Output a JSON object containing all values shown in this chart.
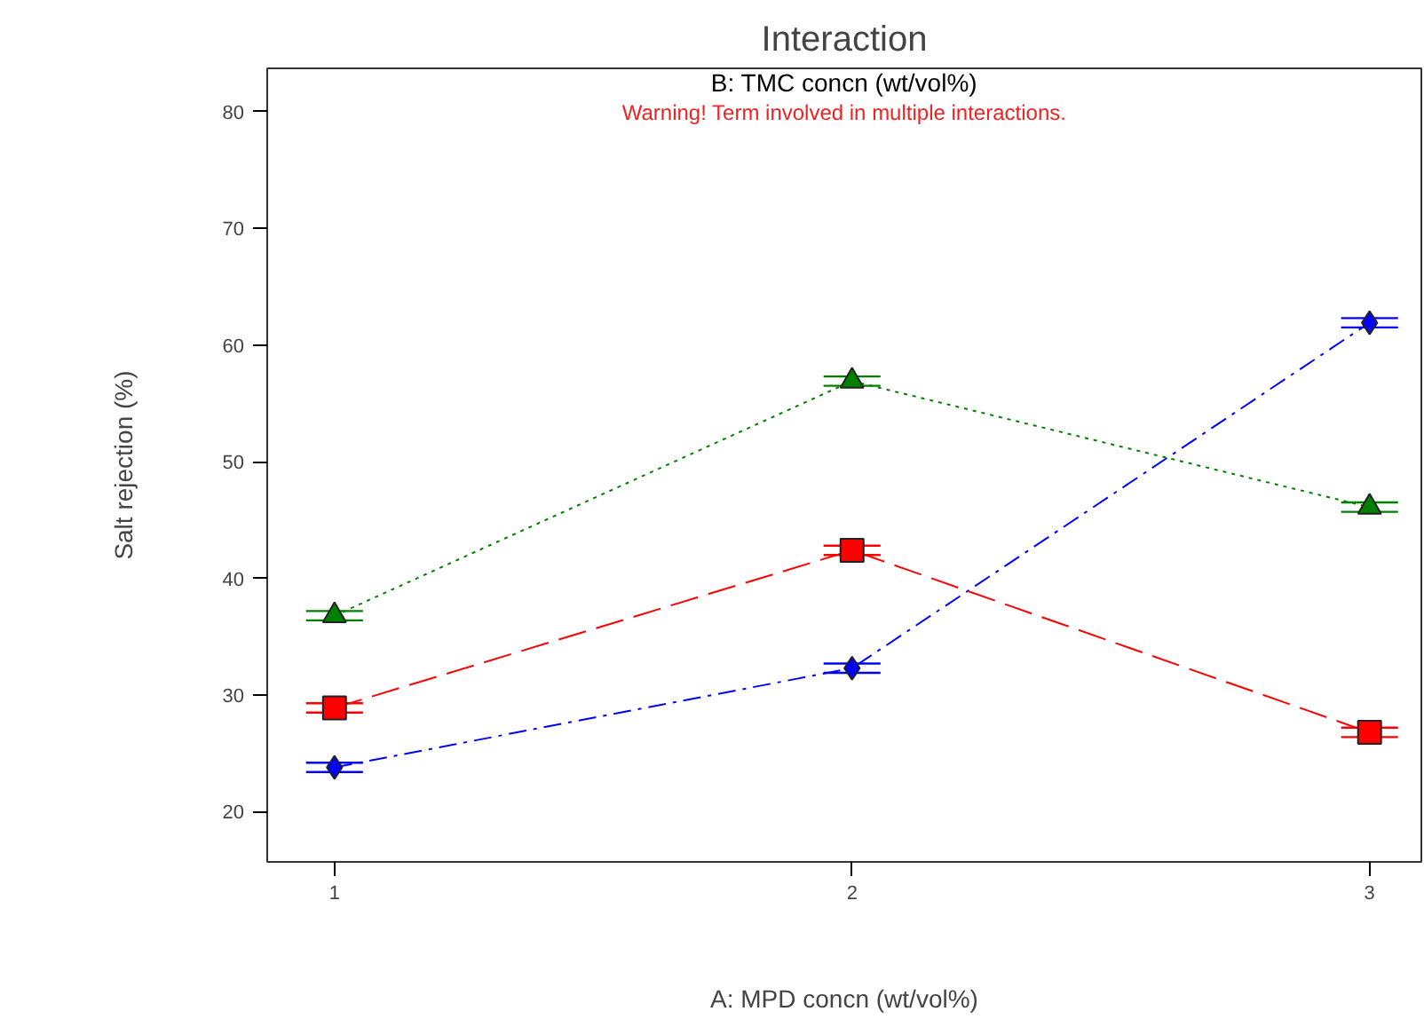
{
  "chart_data": {
    "type": "line",
    "title": "Interaction",
    "xlabel": "A: MPD concn (wt/vol%)",
    "ylabel": "Salt rejection (%)",
    "annotations": [
      "B: TMC concn (wt/vol%)",
      "Warning! Term involved in multiple interactions."
    ],
    "x": [
      1,
      2,
      3
    ],
    "xlim": [
      0.87,
      3.1
    ],
    "xticks": [
      1,
      2,
      3
    ],
    "ylim": [
      15.7,
      83.7
    ],
    "yticks": [
      20,
      30,
      40,
      50,
      60,
      70,
      80
    ],
    "grid": false,
    "series": [
      {
        "color": "#0000ff",
        "values": [
          23.8,
          32.3,
          61.9
        ],
        "errors": [
          0.4,
          0.4,
          0.4
        ],
        "marker": "diamond",
        "line_style": "dashdot"
      },
      {
        "color": "#ff0000",
        "values": [
          28.9,
          42.4,
          26.8
        ],
        "errors": [
          0.4,
          0.4,
          0.4
        ],
        "marker": "square",
        "line_style": "dashed"
      },
      {
        "color": "#008000",
        "values": [
          36.8,
          56.9,
          46.1
        ],
        "errors": [
          0.4,
          0.4,
          0.4
        ],
        "marker": "triangle",
        "line_style": "dotted"
      }
    ]
  }
}
